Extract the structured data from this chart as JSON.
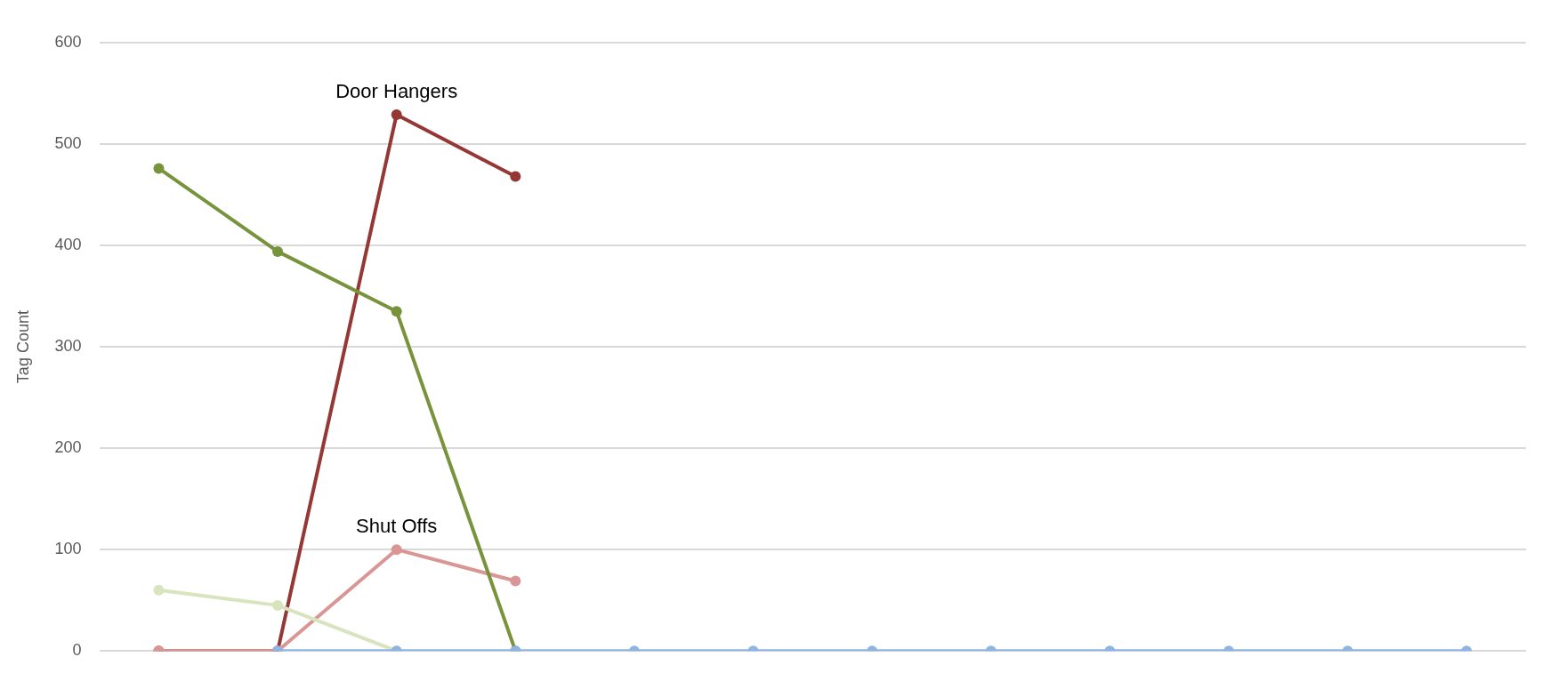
{
  "chart_data": {
    "type": "line",
    "ylabel": "Tag Count",
    "categories": [
      null,
      null,
      null,
      null,
      null,
      null,
      null,
      null,
      null,
      null,
      null,
      null
    ],
    "series": [
      {
        "color": "#8eb4e3",
        "values": [
          null,
          0,
          0,
          0,
          0,
          0,
          0,
          0,
          0,
          0,
          0,
          0
        ]
      },
      {
        "color": "#d7e4bd",
        "values": [
          60,
          45,
          0,
          null,
          null,
          null,
          null,
          null,
          null,
          null,
          null,
          null
        ]
      },
      {
        "color": "#77933c",
        "values": [
          476,
          394,
          335,
          0,
          null,
          null,
          null,
          null,
          null,
          null,
          null,
          null
        ]
      },
      {
        "name": "Shut Offs",
        "color": "#d99694",
        "values": [
          0,
          0,
          100,
          69,
          null,
          null,
          null,
          null,
          null,
          null,
          null,
          null
        ]
      },
      {
        "name": "Door Hangers",
        "color": "#953735",
        "values": [
          0,
          0,
          529,
          468,
          null,
          null,
          null,
          null,
          null,
          null,
          null,
          null
        ]
      }
    ],
    "ylim": [
      0,
      600
    ],
    "yticks": [
      0,
      100,
      200,
      300,
      400,
      500,
      600
    ],
    "grid": "y",
    "legend": false,
    "tick_labels": "y",
    "marker": "circle",
    "line_style": "solid"
  }
}
